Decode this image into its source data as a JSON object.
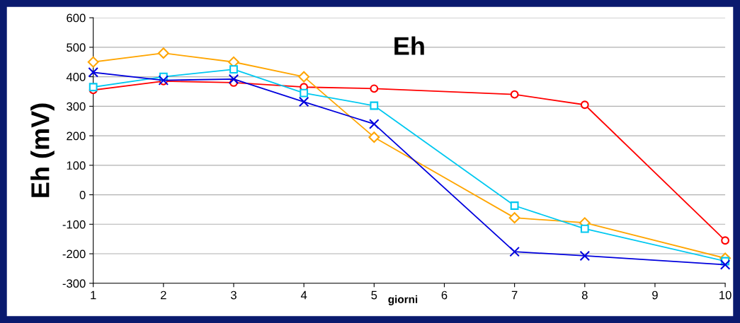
{
  "chart_data": {
    "type": "line",
    "title": "Eh",
    "xlabel": "giorni",
    "ylabel": "Eh (mV)",
    "x": [
      1,
      2,
      3,
      4,
      5,
      7,
      8,
      10
    ],
    "series": [
      {
        "color": "#ff0000",
        "marker": "circle",
        "values": [
          355,
          385,
          380,
          365,
          360,
          340,
          305,
          -155
        ]
      },
      {
        "color": "#ffa500",
        "marker": "diamond",
        "values": [
          450,
          480,
          450,
          400,
          195,
          -78,
          -95,
          -215
        ]
      },
      {
        "color": "#00c8f0",
        "marker": "square",
        "values": [
          365,
          400,
          425,
          345,
          302,
          -37,
          -115,
          -225
        ]
      },
      {
        "color": "#0000dd",
        "marker": "cross",
        "values": [
          415,
          388,
          392,
          315,
          240,
          -193,
          -207,
          -237
        ]
      }
    ],
    "xlim": [
      1,
      10
    ],
    "xticks": [
      1,
      2,
      3,
      4,
      5,
      6,
      7,
      8,
      9,
      10
    ],
    "ylim": [
      -300,
      600
    ],
    "yticks": [
      -300,
      -200,
      -100,
      0,
      100,
      200,
      300,
      400,
      500,
      600
    ],
    "grid": "y",
    "legend": false
  }
}
